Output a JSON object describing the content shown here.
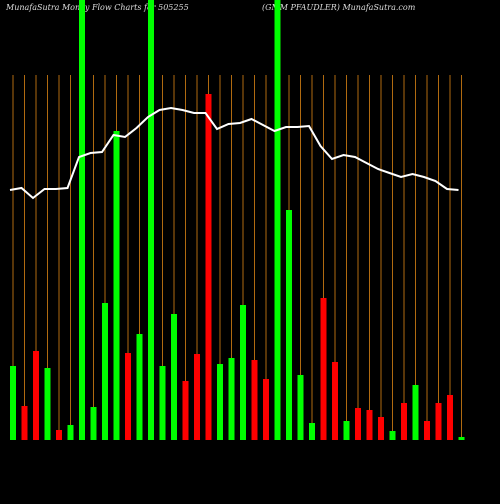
{
  "chart_data": {
    "type": "bar",
    "title": "MunafaSutra  Money Flow  Charts for 505255",
    "subtitle": "(GMM PFAUDLER) MunafaSutra.com",
    "categories": [
      null,
      null,
      null,
      null,
      null,
      null,
      null,
      null,
      null,
      null,
      null,
      null,
      null,
      null,
      null,
      null,
      null,
      null,
      null,
      null,
      null,
      null,
      null,
      null,
      null,
      null,
      null,
      null,
      null,
      null,
      null,
      null,
      null,
      null,
      null,
      null,
      null,
      null,
      null,
      null
    ],
    "values": [
      74,
      34,
      89,
      72,
      10,
      15,
      440,
      33,
      137,
      309,
      87,
      106,
      440,
      74,
      126,
      59,
      86,
      346,
      76,
      82,
      135,
      80,
      61,
      440,
      230,
      65,
      17,
      142,
      78,
      19,
      32,
      30,
      23,
      9,
      37,
      55,
      19,
      37,
      45,
      3
    ],
    "colors": [
      "#00ff00",
      "#ff0000",
      "#ff0000",
      "#00ff00",
      "#ff0000",
      "#00ff00",
      "#00ff00",
      "#00ff00",
      "#00ff00",
      "#00ff00",
      "#ff0000",
      "#00ff00",
      "#00ff00",
      "#00ff00",
      "#00ff00",
      "#ff0000",
      "#ff0000",
      "#ff0000",
      "#00ff00",
      "#00ff00",
      "#00ff00",
      "#ff0000",
      "#ff0000",
      "#00ff00",
      "#00ff00",
      "#00ff00",
      "#00ff00",
      "#ff0000",
      "#ff0000",
      "#00ff00",
      "#ff0000",
      "#ff0000",
      "#ff0000",
      "#00ff00",
      "#ff0000",
      "#00ff00",
      "#ff0000",
      "#ff0000",
      "#ff0000",
      "#00ff00"
    ],
    "line": {
      "color": "#ffffff",
      "values": [
        250,
        252,
        242,
        251,
        251,
        252,
        283,
        287,
        288,
        305,
        303,
        312,
        323,
        330,
        332,
        330,
        327,
        327,
        311,
        316,
        317,
        321,
        315,
        309,
        313,
        313,
        314,
        294,
        281,
        285,
        283,
        277,
        271,
        267,
        263,
        266,
        263,
        259,
        251,
        250
      ]
    },
    "ylim": [
      0,
      440
    ],
    "grid": true,
    "grid_color": "#b06a10"
  }
}
